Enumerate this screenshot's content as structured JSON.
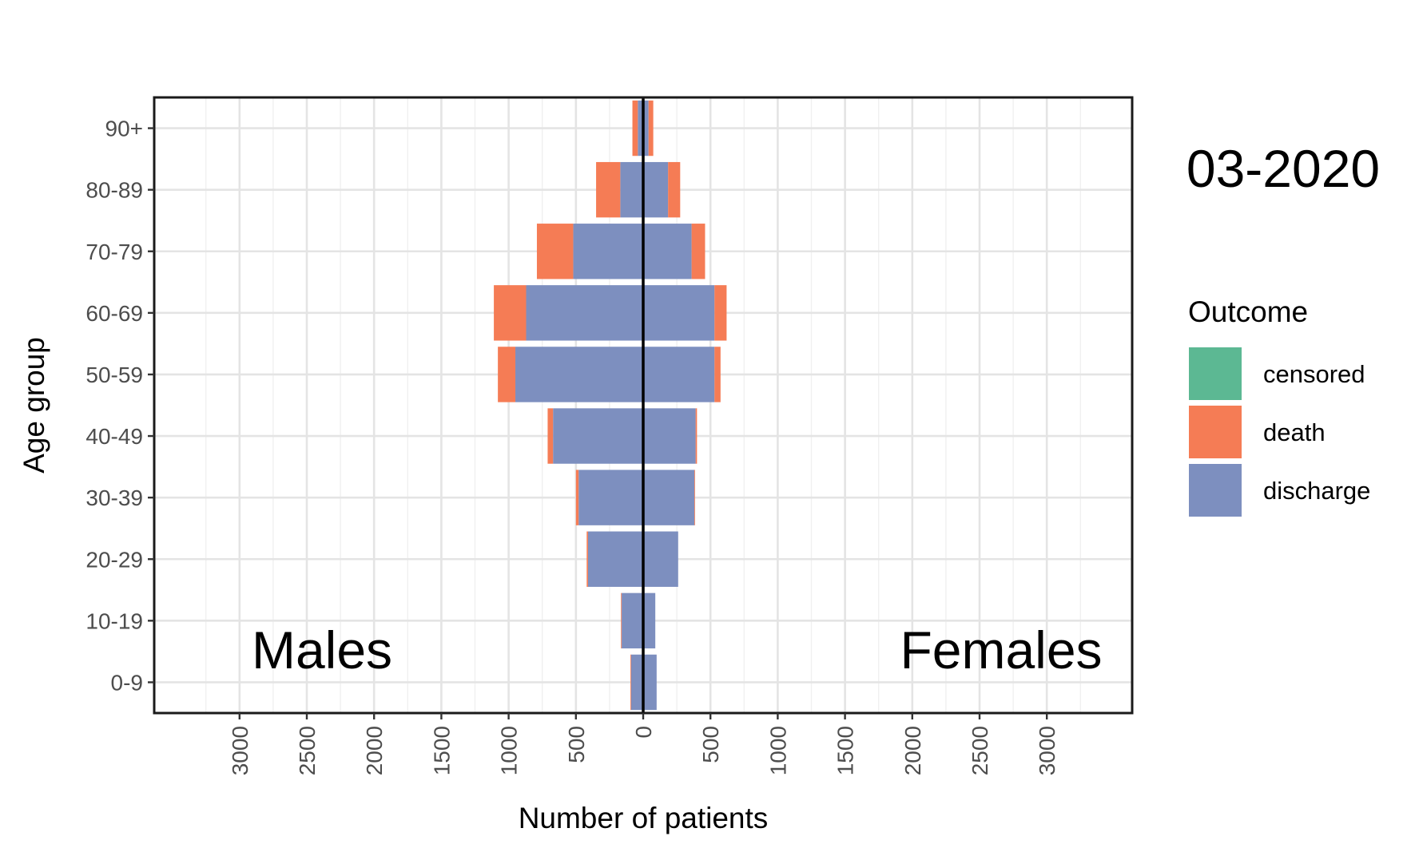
{
  "chart_data": {
    "type": "bar",
    "orientation": "horizontal-population-pyramid",
    "period_label": "03-2020",
    "xlabel": "Number of patients",
    "ylabel": "Age group",
    "left_panel_label": "Males",
    "right_panel_label": "Females",
    "xlim": [
      -3600,
      3600
    ],
    "x_ticks": [
      {
        "value": -3000,
        "label": "3000"
      },
      {
        "value": -2500,
        "label": "2500"
      },
      {
        "value": -2000,
        "label": "2000"
      },
      {
        "value": -1500,
        "label": "1500"
      },
      {
        "value": -1000,
        "label": "1000"
      },
      {
        "value": -500,
        "label": "500"
      },
      {
        "value": 0,
        "label": "0"
      },
      {
        "value": 500,
        "label": "500"
      },
      {
        "value": 1000,
        "label": "1000"
      },
      {
        "value": 1500,
        "label": "1500"
      },
      {
        "value": 2000,
        "label": "2000"
      },
      {
        "value": 2500,
        "label": "2500"
      },
      {
        "value": 3000,
        "label": "3000"
      }
    ],
    "grid": true,
    "legend_position": "right",
    "legend": {
      "title": "Outcome",
      "entries": [
        {
          "key": "censored",
          "label": "censored",
          "color": "#5cb893"
        },
        {
          "key": "death",
          "label": "death",
          "color": "#f57c55"
        },
        {
          "key": "discharge",
          "label": "discharge",
          "color": "#7d8fbf"
        }
      ]
    },
    "categories": [
      "0-9",
      "10-19",
      "20-29",
      "30-39",
      "40-49",
      "50-59",
      "60-69",
      "70-79",
      "80-89",
      "90+"
    ],
    "series": [
      {
        "sex": "Males",
        "outcome": "discharge",
        "values": [
          90,
          160,
          410,
          480,
          670,
          950,
          870,
          520,
          170,
          40
        ]
      },
      {
        "sex": "Males",
        "outcome": "death",
        "values": [
          5,
          5,
          10,
          20,
          40,
          130,
          240,
          270,
          180,
          40
        ]
      },
      {
        "sex": "Females",
        "outcome": "discharge",
        "values": [
          100,
          90,
          260,
          380,
          390,
          530,
          530,
          360,
          185,
          40
        ]
      },
      {
        "sex": "Females",
        "outcome": "death",
        "values": [
          0,
          0,
          0,
          5,
          10,
          45,
          90,
          100,
          90,
          35
        ]
      }
    ]
  }
}
